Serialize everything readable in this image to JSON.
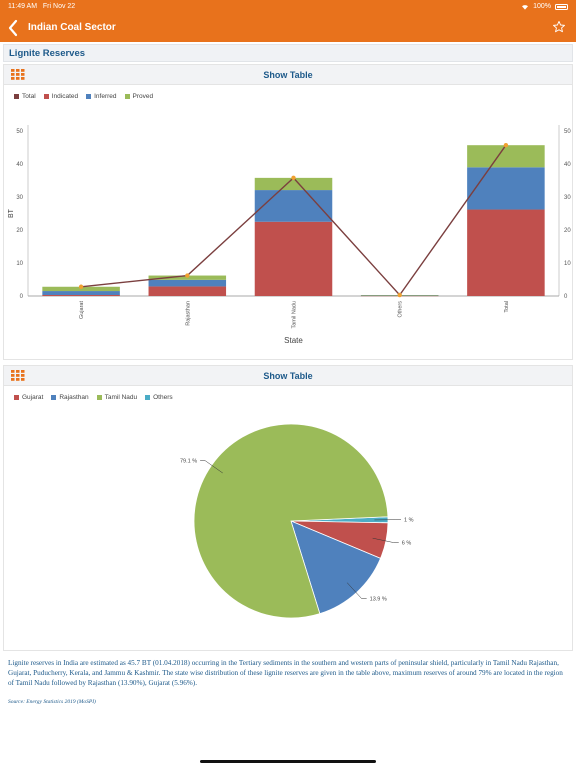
{
  "status": {
    "time": "11:49 AM",
    "date": "Fri Nov 22",
    "battery": "100%"
  },
  "nav": {
    "title": "Indian Coal Sector"
  },
  "section": {
    "title": "Lignite Reserves"
  },
  "card1": {
    "show_table": "Show Table"
  },
  "card2": {
    "show_table": "Show Table"
  },
  "description": "Lignite reserves in India are estimated as 45.7 BT (01.04.2018) occurring in the Tertiary sediments in the southern and western parts of peninsular shield, particularly in Tamil Nadu Rajasthan, Gujarat, Puducherry, Kerala, and Jammu & Kashmir. The state wise distribution of these lignite reserves are given in the table above, maximum reserves of around 79% are located in the region of Tamil Nadu followed by Rajasthan (13.90%), Gujarat (5.96%).",
  "source": "Source: Energy Statistics 2019 (MoSPI)",
  "colors": {
    "accent": "#e8721c",
    "link": "#1e5a8a"
  },
  "chart_data": [
    {
      "type": "bar",
      "stacked": true,
      "categories": [
        "Gujarat",
        "Rajasthan",
        "Tamil Nadu",
        "Others",
        "Total"
      ],
      "series": [
        {
          "name": "Indicated",
          "color": "#c0504d",
          "values": [
            0.3,
            2.9,
            22.5,
            0.1,
            26.2
          ]
        },
        {
          "name": "Inferred",
          "color": "#4f81bd",
          "values": [
            1.2,
            2.0,
            9.6,
            0.1,
            12.8
          ]
        },
        {
          "name": "Proved",
          "color": "#9bbb59",
          "values": [
            1.3,
            1.3,
            3.7,
            0.1,
            6.7
          ]
        }
      ],
      "line_series": {
        "name": "Total",
        "color": "#7b3f3f",
        "values": [
          2.8,
          6.2,
          35.8,
          0.3,
          45.7
        ]
      },
      "legend": [
        "Total",
        "Indicated",
        "Inferred",
        "Proved"
      ],
      "xlabel": "State",
      "ylabel": "BT",
      "ylim": [
        0,
        50
      ],
      "yticks": [
        0,
        10,
        20,
        30,
        40,
        50
      ],
      "legend_position": "top-left",
      "grid": false
    },
    {
      "type": "pie",
      "categories": [
        "Gujarat",
        "Rajasthan",
        "Tamil Nadu",
        "Others"
      ],
      "values": [
        6,
        13.9,
        79.1,
        1
      ],
      "labels": [
        "6 %",
        "13.9 %",
        "79.1 %",
        "1 %"
      ],
      "colors": [
        "#c0504d",
        "#4f81bd",
        "#9bbb59",
        "#4bacc6"
      ],
      "legend_position": "top-left"
    }
  ]
}
